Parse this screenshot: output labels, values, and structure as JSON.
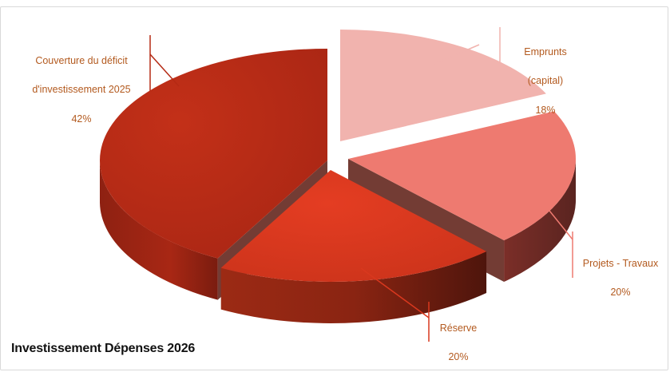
{
  "chart_data": {
    "type": "pie",
    "title": "Investissement Dépenses 2026",
    "slices": [
      {
        "name": "Emprunts (capital)",
        "label_line1": "Emprunts",
        "label_line2": "(capital)",
        "percent_label": "18%",
        "value": 18
      },
      {
        "name": "Projets - Travaux",
        "label_line1": "Projets - Travaux",
        "label_line2": "",
        "percent_label": "20%",
        "value": 20
      },
      {
        "name": "Réserve",
        "label_line1": "Réserve",
        "label_line2": "",
        "percent_label": "20%",
        "value": 20
      },
      {
        "name": "Couverture du déficit d'investissement 2025",
        "label_line1": "Couverture du déficit",
        "label_line2": "d'investissement 2025",
        "percent_label": "42%",
        "value": 42
      }
    ],
    "colors": [
      "#f1b3ae",
      "#ee7a70",
      "#d9381e",
      "#b52a14"
    ],
    "label_color": "#b35a1f",
    "style": "3d-exploded"
  }
}
